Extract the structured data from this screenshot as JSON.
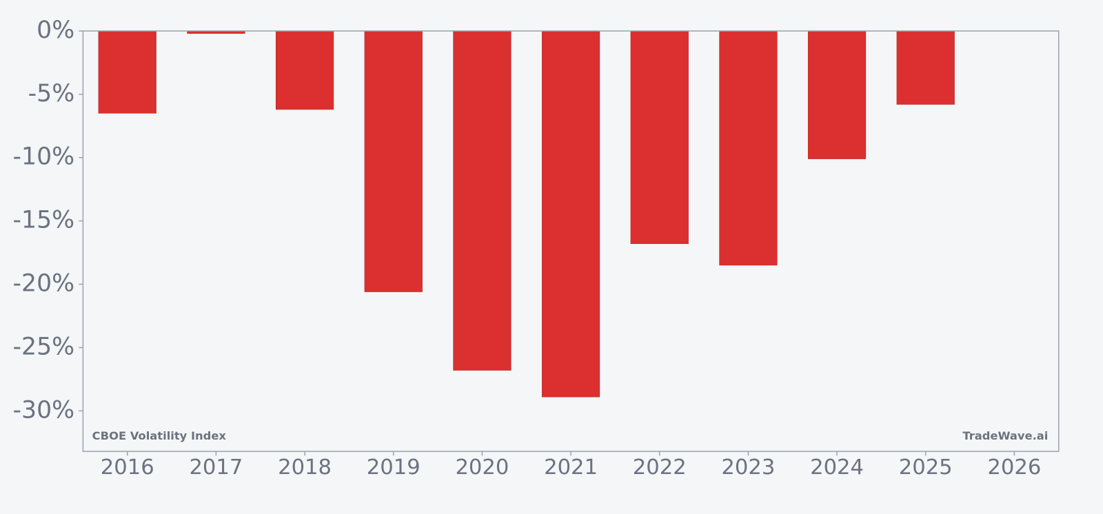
{
  "chart_data": {
    "type": "bar",
    "categories": [
      "2016",
      "2017",
      "2018",
      "2019",
      "2020",
      "2021",
      "2022",
      "2023",
      "2024",
      "2025",
      "2026"
    ],
    "values": [
      -6.5,
      -0.2,
      -6.2,
      -20.6,
      -26.8,
      -28.9,
      -16.8,
      -18.5,
      -10.1,
      -5.8,
      null
    ],
    "color": "#dc2f2f",
    "ylim": [
      -33.2,
      0
    ],
    "yticks": [
      {
        "value": 0,
        "label": "0%"
      },
      {
        "value": -5,
        "label": "-5%"
      },
      {
        "value": -10,
        "label": "-10%"
      },
      {
        "value": -15,
        "label": "-15%"
      },
      {
        "value": -20,
        "label": "-20%"
      },
      {
        "value": -25,
        "label": "-25%"
      },
      {
        "value": -30,
        "label": "-30%"
      }
    ],
    "annotations": [
      "CBOE Volatility Index",
      "TradeWave.ai"
    ]
  }
}
